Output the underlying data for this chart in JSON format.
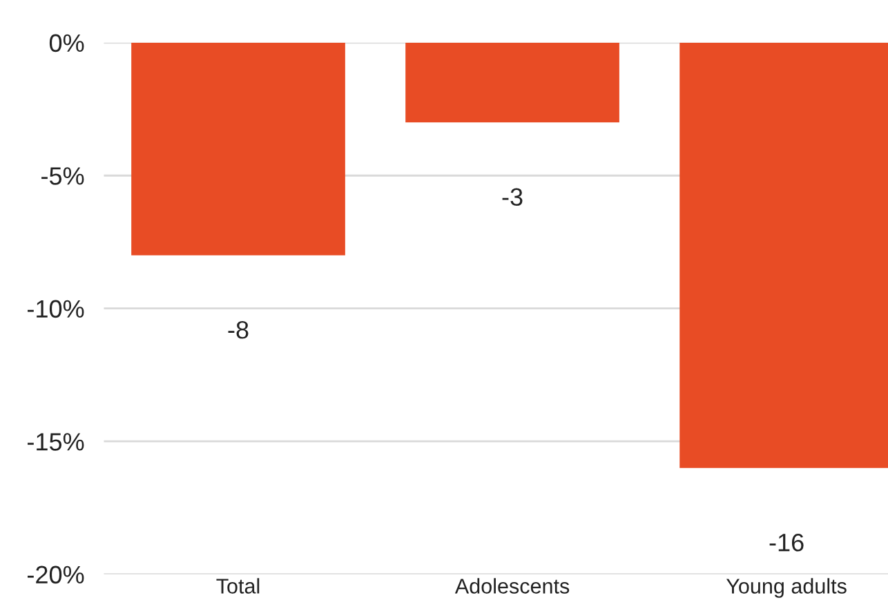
{
  "chart_data": {
    "type": "bar",
    "categories": [
      "Total",
      "Adolescents",
      "Young adults"
    ],
    "values": [
      -8,
      -3,
      -16
    ],
    "color": "#e84c25",
    "data_labels": true,
    "ylim": [
      -20,
      0
    ],
    "yticks": [
      {
        "value": -20,
        "label": "-20%"
      },
      {
        "value": -15,
        "label": "-15%"
      },
      {
        "value": -10,
        "label": "-10%"
      },
      {
        "value": -5,
        "label": "-5%"
      },
      {
        "value": 0,
        "label": "0%"
      }
    ],
    "grid": "y",
    "legend": false
  }
}
